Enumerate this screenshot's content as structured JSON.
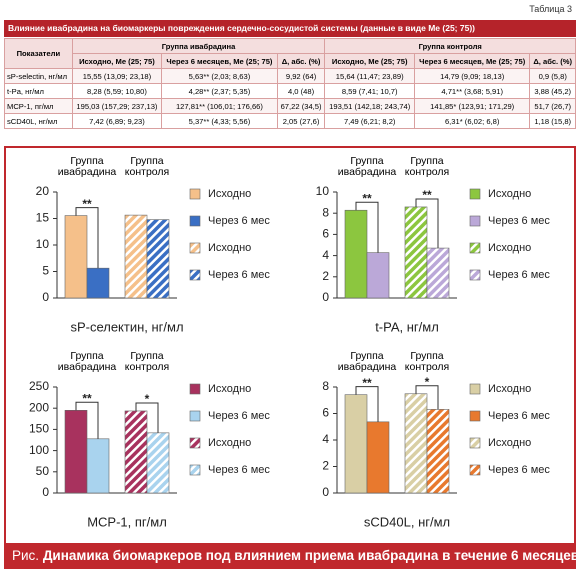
{
  "table": {
    "label": "Таблица 3",
    "title": "Влияние ивабрадина на биомаркеры повреждения сердечно-сосудистой системы (данные в виде Me (25; 75))",
    "group_header": [
      "Показатели",
      "Группа ивабрадина",
      "Группа контроля"
    ],
    "columns": [
      "Исходно, Me (25; 75)",
      "Через 6 месяцев, Me (25; 75)",
      "Δ, абс. (%)",
      "Исходно, Me (25; 75)",
      "Через 6 месяцев, Me (25; 75)",
      "Δ, абс. (%)"
    ],
    "rows": [
      [
        "sP-selectin, нг/мл",
        "15,55 (13,09; 23,18)",
        "5,63** (2,03; 8,63)",
        "9,92 (64)",
        "15,64 (11,47; 23,89)",
        "14,79 (9,09; 18,13)",
        "0,9 (5,8)"
      ],
      [
        "t-Pa, нг/мл",
        "8,28 (5,59; 10,80)",
        "4,28** (2,37; 5,35)",
        "4,0 (48)",
        "8,59 (7,41; 10,7)",
        "4,71** (3,68; 5,91)",
        "3,88 (45,2)"
      ],
      [
        "MCP-1, пг/мл",
        "195,03 (157,29; 237,13)",
        "127,81** (106,01; 176,66)",
        "67,22 (34,5)",
        "193,51 (142,18; 243,74)",
        "141,85* (123,91; 171,29)",
        "51,7 (26,7)"
      ],
      [
        "sCD40L, нг/мл",
        "7,42 (6,89; 9,23)",
        "5,37** (4,33; 5,56)",
        "2,05 (27,6)",
        "7,49 (6,21; 8,2)",
        "6,31* (6,02; 6,8)",
        "1,18 (15,8)"
      ]
    ]
  },
  "figure": {
    "caption_label": "Рис.",
    "caption": "Динамика биомаркеров под влиянием приема ивабрадина в течение 6 месяцев"
  },
  "chart_data": [
    {
      "type": "bar",
      "x_label": "sP-селектин, нг/мл",
      "categories": [
        "Группа ивабрадина",
        "Группа контроля"
      ],
      "significance": [
        "**",
        null
      ],
      "series": [
        {
          "name": "Исходно",
          "color": "#f5c08a",
          "pattern": "solid",
          "values": [
            15.55,
            null
          ]
        },
        {
          "name": "Через 6 мес",
          "color": "#3a6fc4",
          "pattern": "solid",
          "values": [
            5.63,
            null
          ]
        },
        {
          "name": "Исходно",
          "color": "#f5c08a",
          "pattern": "hatch",
          "values": [
            null,
            15.64
          ]
        },
        {
          "name": "Через 6 мес",
          "color": "#3a6fc4",
          "pattern": "hatch",
          "values": [
            null,
            14.79
          ]
        }
      ],
      "ylim": [
        0,
        20
      ],
      "yticks": [
        0,
        5,
        10,
        15,
        20
      ]
    },
    {
      "type": "bar",
      "x_label": "t-PA, нг/мл",
      "categories": [
        "Группа ивабрадина",
        "Группа контроля"
      ],
      "significance": [
        "**",
        "**"
      ],
      "series": [
        {
          "name": "Исходно",
          "color": "#8cc63f",
          "pattern": "solid",
          "values": [
            8.28,
            null
          ]
        },
        {
          "name": "Через 6 мес",
          "color": "#bba8d8",
          "pattern": "solid",
          "values": [
            4.28,
            null
          ]
        },
        {
          "name": "Исходно",
          "color": "#8cc63f",
          "pattern": "hatch",
          "values": [
            null,
            8.59
          ]
        },
        {
          "name": "Через 6 мес",
          "color": "#bba8d8",
          "pattern": "hatch",
          "values": [
            null,
            4.71
          ]
        }
      ],
      "ylim": [
        0,
        10
      ],
      "yticks": [
        0,
        2,
        4,
        6,
        8,
        10
      ]
    },
    {
      "type": "bar",
      "x_label": "MCP-1, пг/мл",
      "categories": [
        "Группа ивабрадина",
        "Группа контроля"
      ],
      "significance": [
        "**",
        "*"
      ],
      "series": [
        {
          "name": "Исходно",
          "color": "#a8325e",
          "pattern": "solid",
          "values": [
            195.03,
            null
          ]
        },
        {
          "name": "Через 6 мес",
          "color": "#a9d3ee",
          "pattern": "solid",
          "values": [
            127.81,
            null
          ]
        },
        {
          "name": "Исходно",
          "color": "#a8325e",
          "pattern": "hatch",
          "values": [
            null,
            193.51
          ]
        },
        {
          "name": "Через 6 мес",
          "color": "#a9d3ee",
          "pattern": "hatch",
          "values": [
            null,
            141.85
          ]
        }
      ],
      "ylim": [
        0,
        250
      ],
      "yticks": [
        0,
        50,
        100,
        150,
        200,
        250
      ]
    },
    {
      "type": "bar",
      "x_label": "sCD40L, нг/мл",
      "categories": [
        "Группа ивабрадина",
        "Группа контроля"
      ],
      "significance": [
        "**",
        "*"
      ],
      "series": [
        {
          "name": "Исходно",
          "color": "#d9cfa5",
          "pattern": "solid",
          "values": [
            7.42,
            null
          ]
        },
        {
          "name": "Через 6 мес",
          "color": "#e8792e",
          "pattern": "solid",
          "values": [
            5.37,
            null
          ]
        },
        {
          "name": "Исходно",
          "color": "#d9cfa5",
          "pattern": "hatch",
          "values": [
            null,
            7.49
          ]
        },
        {
          "name": "Через 6 мес",
          "color": "#e8792e",
          "pattern": "hatch",
          "values": [
            null,
            6.31
          ]
        }
      ],
      "ylim": [
        0,
        8
      ],
      "yticks": [
        0,
        2,
        4,
        6,
        8
      ]
    }
  ]
}
